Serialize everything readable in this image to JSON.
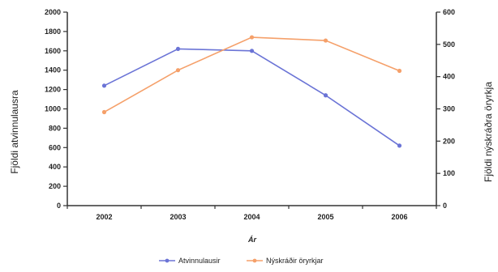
{
  "chart_data": {
    "type": "line",
    "categories": [
      "2002",
      "2003",
      "2004",
      "2005",
      "2006"
    ],
    "xlabel": "Ár",
    "ylabel_left": "Fjöldi atvinnulausra",
    "ylabel_right": "Fjöldi nýskráðra öryrkja",
    "ylim_left": [
      0,
      2000
    ],
    "ylim_right": [
      0,
      600
    ],
    "yticks_left": [
      "0",
      "200",
      "400",
      "600",
      "800",
      "1000",
      "1200",
      "1400",
      "1600",
      "1800",
      "2000"
    ],
    "yticks_right": [
      "0",
      "100",
      "200",
      "300",
      "400",
      "500",
      "600"
    ],
    "grid": false,
    "legend_position": "bottom",
    "series": [
      {
        "name": "Atvinnulausir",
        "axis": "left",
        "color": "#6b74d6",
        "values": [
          1240,
          1620,
          1600,
          1140,
          620
        ]
      },
      {
        "name": "Nýskráðir öryrkjar",
        "axis": "right",
        "color": "#f5a06a",
        "values": [
          290,
          420,
          522,
          512,
          418
        ]
      }
    ]
  }
}
